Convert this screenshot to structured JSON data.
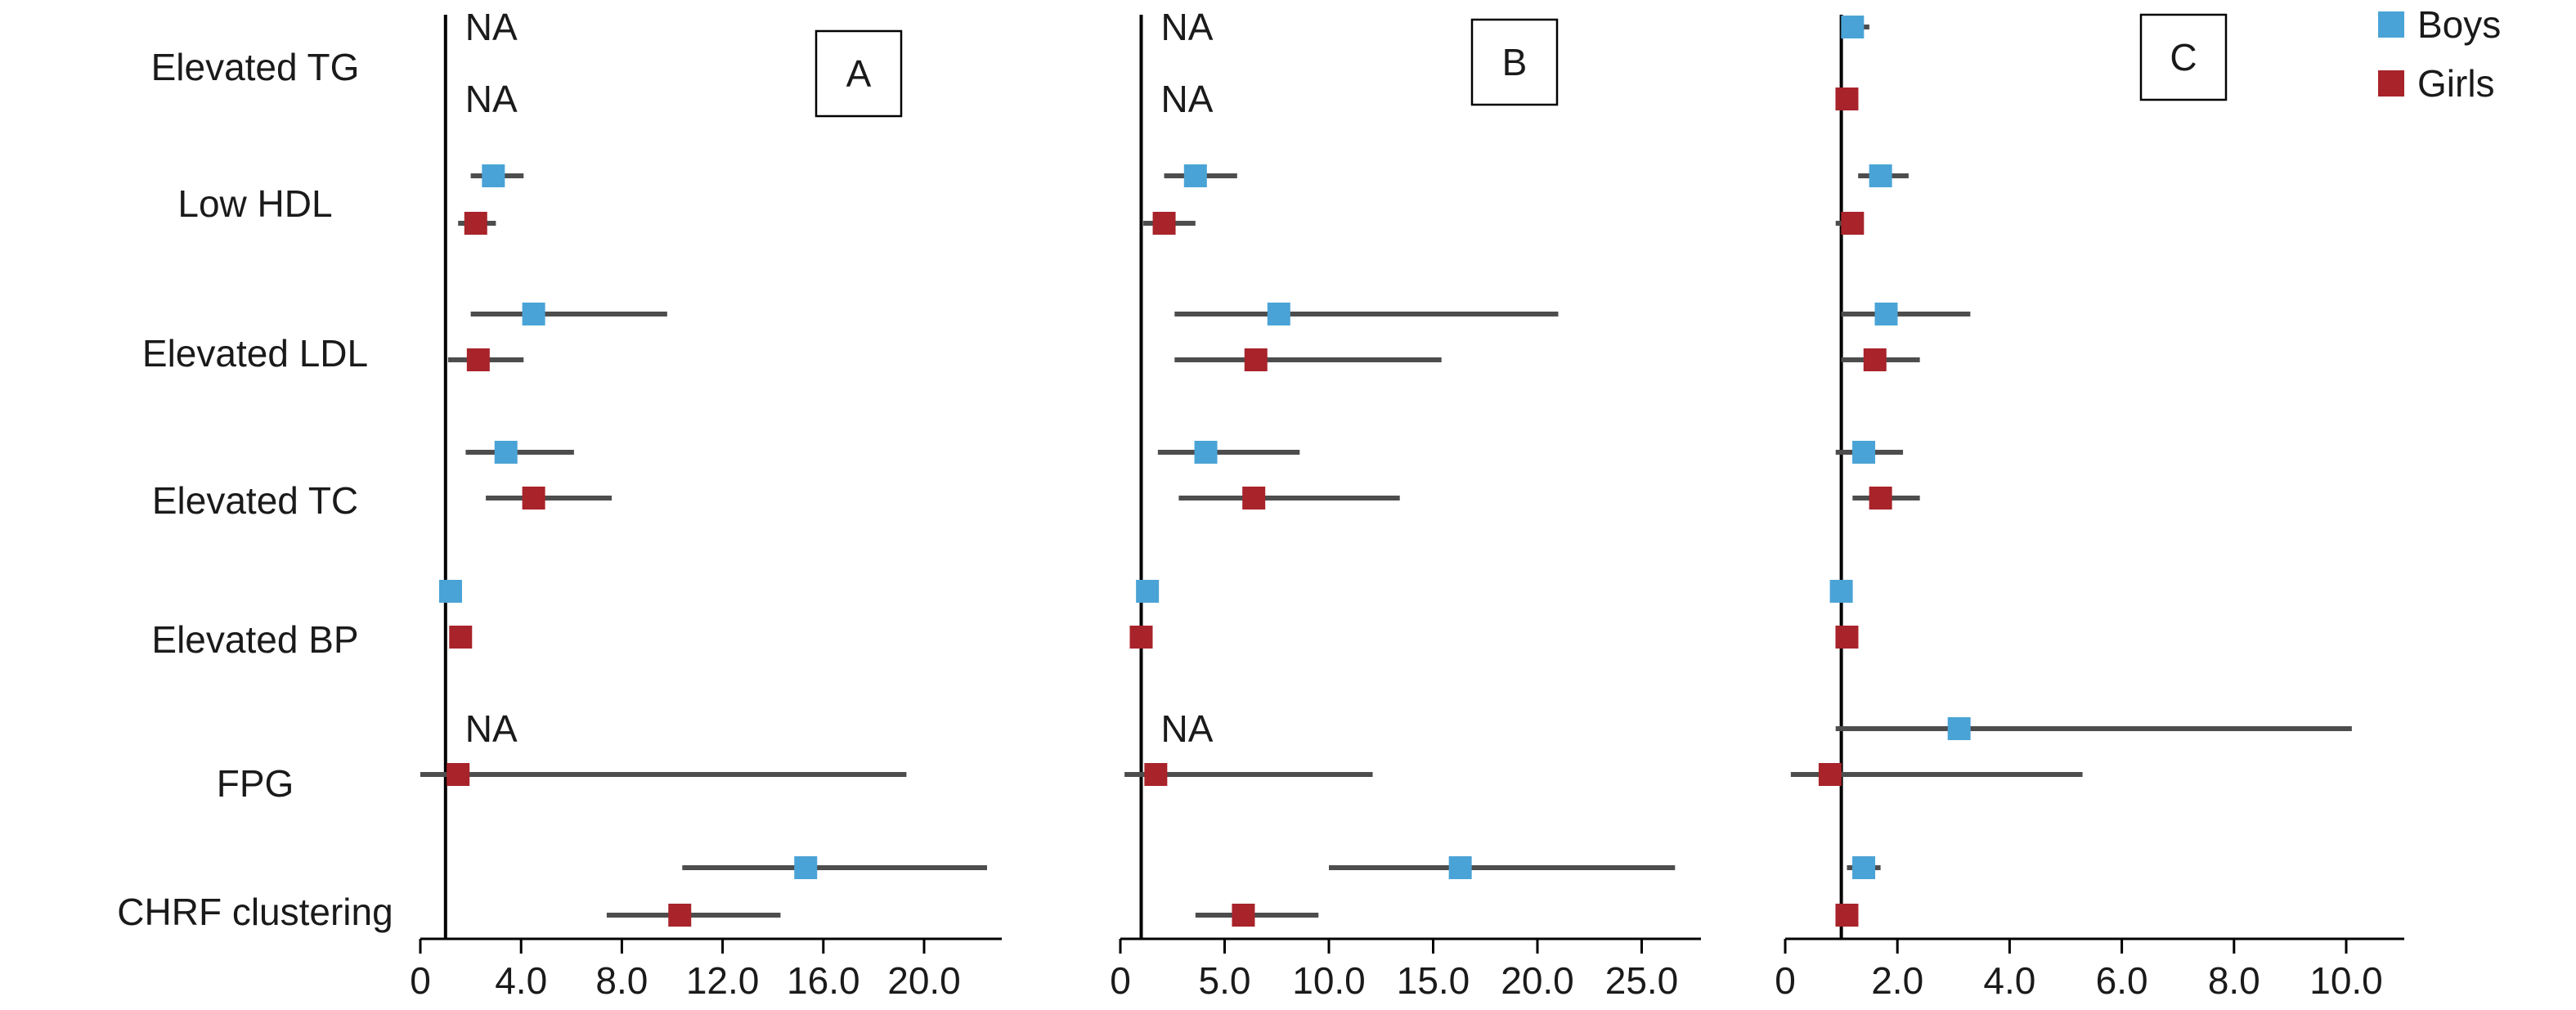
{
  "legend": [
    {
      "name": "Boys",
      "color": "#4aa3d6"
    },
    {
      "name": "Girls",
      "color": "#a8232a"
    }
  ],
  "colors": {
    "axis": "#000000",
    "ci_line": "#4d4d4d"
  },
  "chart_data": {
    "type": "forest",
    "rows": [
      "Elevated TG",
      "Low HDL",
      "Elevated LDL",
      "Elevated TC",
      "Elevated BP",
      "FPG",
      "CHRF clustering"
    ],
    "series_names": [
      "Boys",
      "Girls"
    ],
    "legend_position": "top-right",
    "panels": [
      {
        "label": "A",
        "xlim": [
          0,
          23.5
        ],
        "ticks": [
          "0",
          "4.0",
          "8.0",
          "12.0",
          "16.0",
          "20.0"
        ],
        "tick_values": [
          0,
          4,
          8,
          12,
          16,
          20
        ],
        "reference": 1,
        "points": {
          "Boys": [
            {
              "row": "Elevated TG",
              "na": true
            },
            {
              "row": "Low HDL",
              "est": 2.9,
              "low": 2.0,
              "high": 4.1
            },
            {
              "row": "Elevated LDL",
              "est": 4.5,
              "low": 2.0,
              "high": 9.8
            },
            {
              "row": "Elevated TC",
              "est": 3.4,
              "low": 1.8,
              "high": 6.1
            },
            {
              "row": "Elevated BP",
              "est": 1.2,
              "low": 0.9,
              "high": 1.5
            },
            {
              "row": "FPG",
              "na": true
            },
            {
              "row": "CHRF clustering",
              "est": 15.3,
              "low": 10.4,
              "high": 22.5
            }
          ],
          "Girls": [
            {
              "row": "Elevated TG",
              "na": true
            },
            {
              "row": "Low HDL",
              "est": 2.2,
              "low": 1.5,
              "high": 3.0
            },
            {
              "row": "Elevated LDL",
              "est": 2.3,
              "low": 1.1,
              "high": 4.1
            },
            {
              "row": "Elevated TC",
              "est": 4.5,
              "low": 2.6,
              "high": 7.6
            },
            {
              "row": "Elevated BP",
              "est": 1.6,
              "low": 1.2,
              "high": 1.9
            },
            {
              "row": "FPG",
              "est": 1.5,
              "low": 0.0,
              "high": 19.3
            },
            {
              "row": "CHRF clustering",
              "est": 10.3,
              "low": 7.4,
              "high": 14.3
            }
          ]
        },
        "na_labels": [
          {
            "row": "Elevated TG",
            "series": "Boys",
            "text": "NA"
          },
          {
            "row": "Elevated TG",
            "series": "Girls",
            "text": "NA"
          },
          {
            "row": "FPG",
            "series": "Boys",
            "text": "NA"
          }
        ]
      },
      {
        "label": "B",
        "xlim": [
          0,
          27.5
        ],
        "ticks": [
          "0",
          "5.0",
          "10.0",
          "15.0",
          "20.0",
          "25.0"
        ],
        "tick_values": [
          0,
          5,
          10,
          15,
          20,
          25
        ],
        "reference": 1,
        "points": {
          "Boys": [
            {
              "row": "Elevated TG",
              "na": true
            },
            {
              "row": "Low HDL",
              "est": 3.6,
              "low": 2.1,
              "high": 5.6
            },
            {
              "row": "Elevated LDL",
              "est": 7.6,
              "low": 2.6,
              "high": 21.0
            },
            {
              "row": "Elevated TC",
              "est": 4.1,
              "low": 1.8,
              "high": 8.6
            },
            {
              "row": "Elevated BP",
              "est": 1.3,
              "low": 0.8,
              "high": 1.7
            },
            {
              "row": "FPG",
              "na": true
            },
            {
              "row": "CHRF clustering",
              "est": 16.3,
              "low": 10.0,
              "high": 26.6
            }
          ],
          "Girls": [
            {
              "row": "Elevated TG",
              "na": true
            },
            {
              "row": "Low HDL",
              "est": 2.1,
              "low": 1.1,
              "high": 3.6
            },
            {
              "row": "Elevated LDL",
              "est": 6.5,
              "low": 2.6,
              "high": 15.4
            },
            {
              "row": "Elevated TC",
              "est": 6.4,
              "low": 2.8,
              "high": 13.4
            },
            {
              "row": "Elevated BP",
              "est": 1.0,
              "low": 0.8,
              "high": 1.3
            },
            {
              "row": "FPG",
              "est": 1.7,
              "low": 0.2,
              "high": 12.1
            },
            {
              "row": "CHRF clustering",
              "est": 5.9,
              "low": 3.6,
              "high": 9.5
            }
          ]
        },
        "na_labels": [
          {
            "row": "Elevated TG",
            "series": "Boys",
            "text": "NA"
          },
          {
            "row": "Elevated TG",
            "series": "Girls",
            "text": "NA"
          },
          {
            "row": "FPG",
            "series": "Boys",
            "text": "NA"
          }
        ]
      },
      {
        "label": "C",
        "xlim": [
          0,
          11.0
        ],
        "ticks": [
          "0",
          "2.0",
          "4.0",
          "6.0",
          "8.0",
          "10.0"
        ],
        "tick_values": [
          0,
          2,
          4,
          6,
          8,
          10
        ],
        "reference": 1,
        "points": {
          "Boys": [
            {
              "row": "Elevated TG",
              "est": 1.2,
              "low": 1.0,
              "high": 1.5
            },
            {
              "row": "Low HDL",
              "est": 1.7,
              "low": 1.3,
              "high": 2.2
            },
            {
              "row": "Elevated LDL",
              "est": 1.8,
              "low": 1.0,
              "high": 3.3
            },
            {
              "row": "Elevated TC",
              "est": 1.4,
              "low": 0.9,
              "high": 2.1
            },
            {
              "row": "Elevated BP",
              "est": 1.0,
              "low": 0.9,
              "high": 1.1
            },
            {
              "row": "FPG",
              "est": 3.1,
              "low": 0.9,
              "high": 10.1
            },
            {
              "row": "CHRF clustering",
              "est": 1.4,
              "low": 1.1,
              "high": 1.7
            }
          ],
          "Girls": [
            {
              "row": "Elevated TG",
              "est": 1.1,
              "low": 0.9,
              "high": 1.3
            },
            {
              "row": "Low HDL",
              "est": 1.2,
              "low": 0.9,
              "high": 1.4
            },
            {
              "row": "Elevated LDL",
              "est": 1.6,
              "low": 1.0,
              "high": 2.4
            },
            {
              "row": "Elevated TC",
              "est": 1.7,
              "low": 1.2,
              "high": 2.4
            },
            {
              "row": "Elevated BP",
              "est": 1.1,
              "low": 0.9,
              "high": 1.2
            },
            {
              "row": "FPG",
              "est": 0.8,
              "low": 0.1,
              "high": 5.3
            },
            {
              "row": "CHRF clustering",
              "est": 1.1,
              "low": 0.9,
              "high": 1.3
            }
          ]
        },
        "na_labels": []
      }
    ]
  }
}
